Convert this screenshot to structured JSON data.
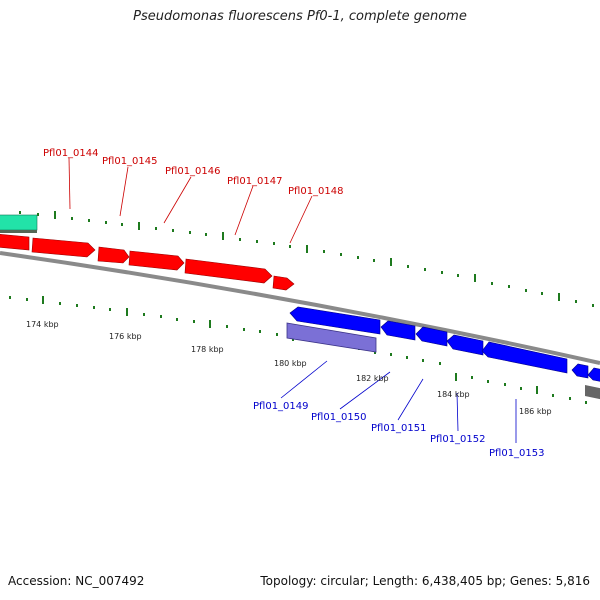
{
  "title": "Pseudomonas fluorescens Pf0-1, complete genome",
  "accession": "Accession: NC_007492",
  "topology": "Topology: circular; Length: 6,438,405 bp; Genes: 5,816",
  "colors": {
    "forward_gene": "#ff0000",
    "reverse_gene": "#0000ff",
    "rna_feature": "#22e3a8",
    "selected_feature": "#7b70d6",
    "other_feature": "#666666",
    "backbone": "#8a8a8a",
    "tick": "#1e7a1e"
  },
  "forward_labels": [
    "Pfl01_0144",
    "Pfl01_0145",
    "Pfl01_0146",
    "Pfl01_0147",
    "Pfl01_0148"
  ],
  "reverse_labels": [
    "Pfl01_0149",
    "Pfl01_0150",
    "Pfl01_0151",
    "Pfl01_0152",
    "Pfl01_0153"
  ],
  "scale_labels": [
    "174 kbp",
    "176 kbp",
    "178 kbp",
    "180 kbp",
    "182 kbp",
    "184 kbp",
    "186 kbp"
  ]
}
